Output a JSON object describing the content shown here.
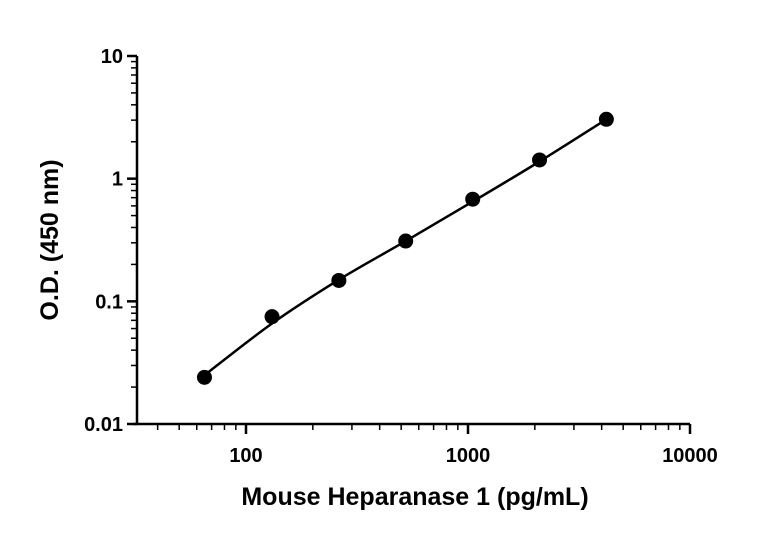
{
  "chart_data": {
    "type": "scatter",
    "title": "",
    "xlabel": "Mouse Heparanase 1 (pg/mL)",
    "ylabel": "O.D. (450 nm)",
    "x_scale": "log",
    "y_scale": "log",
    "xlim": [
      31.25,
      10000
    ],
    "ylim": [
      0.01,
      10
    ],
    "x_ticks": [
      100,
      1000,
      10000
    ],
    "x_tick_labels": [
      "100",
      "1000",
      "10000"
    ],
    "y_ticks": [
      0.01,
      0.1,
      1,
      10
    ],
    "y_tick_labels": [
      "0.01",
      "0.1",
      "1",
      "10"
    ],
    "grid": false,
    "legend": "none",
    "marker_color": "#000000",
    "line_color": "#000000",
    "series": [
      {
        "x": [
          65,
          131,
          262,
          524,
          1050,
          2100,
          4200
        ],
        "y": [
          0.024,
          0.075,
          0.148,
          0.31,
          0.68,
          1.42,
          3.05
        ]
      }
    ],
    "fit_curve": {
      "x": [
        65,
        131,
        262,
        524,
        1050,
        2100,
        4200
      ],
      "y": [
        0.025,
        0.066,
        0.15,
        0.31,
        0.65,
        1.38,
        3.05
      ]
    }
  }
}
